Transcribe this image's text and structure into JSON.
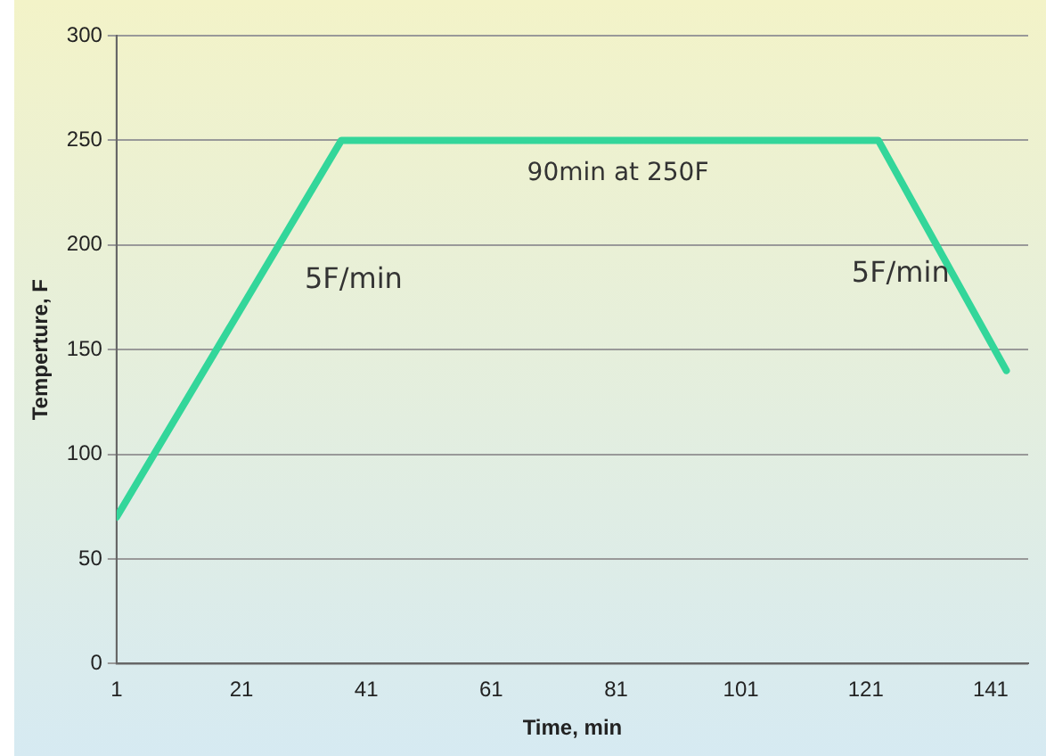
{
  "chart_data": {
    "type": "line",
    "xlabel": "Time, min",
    "ylabel": "Temperture, F",
    "x": [
      1,
      37,
      123,
      143.5
    ],
    "series": [
      {
        "color": "#33d69a",
        "values": [
          70,
          250,
          250,
          140
        ]
      }
    ],
    "xlim": [
      1,
      147
    ],
    "xticks": [
      1,
      21,
      41,
      61,
      81,
      101,
      121,
      141
    ],
    "ylim": [
      0,
      300
    ],
    "yticks": [
      0,
      50,
      100,
      150,
      200,
      250,
      300
    ],
    "grid": "y",
    "legend": false,
    "marker": "none",
    "line_style": "solid",
    "annotations": [
      "90min at 250F",
      "5F/min",
      "5F/min"
    ]
  }
}
